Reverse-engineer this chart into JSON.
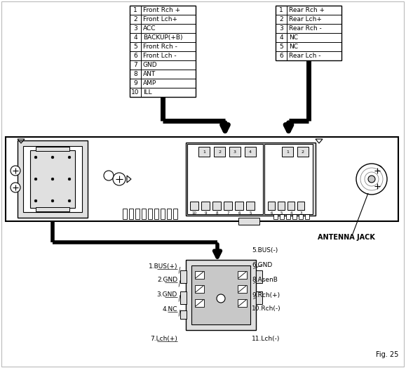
{
  "bg_color": "#ffffff",
  "fig_label": "Fig. 25",
  "antenna_label": "ANTENNA JACK",
  "left_table": {
    "nums": [
      "1",
      "2",
      "3",
      "4",
      "5",
      "6",
      "7",
      "8",
      "9",
      "10"
    ],
    "descs": [
      "Front Rch +",
      "Front Lch+",
      "ACC",
      "BACKUP(+B)",
      "Front Rch -",
      "Front Lch -",
      "GND",
      "ANT",
      "AMP",
      "ILL"
    ]
  },
  "right_table": {
    "nums": [
      "1",
      "2",
      "3",
      "4",
      "5",
      "6"
    ],
    "descs": [
      "Rear Rch +",
      "Rear Lch+",
      "Rear Rch -",
      "NC",
      "NC",
      "Rear Lch -"
    ]
  },
  "bottom_labels_left": [
    "1.BUS(+)",
    "2.GND",
    "3.GND",
    "4.NC",
    "7.Lch(+)"
  ],
  "bottom_labels_right": [
    "5.BUS(-)",
    "6.GND",
    "8.AsenB",
    "9.Rch(+)",
    "10.Rch(-)",
    "11.Lch(-)"
  ]
}
